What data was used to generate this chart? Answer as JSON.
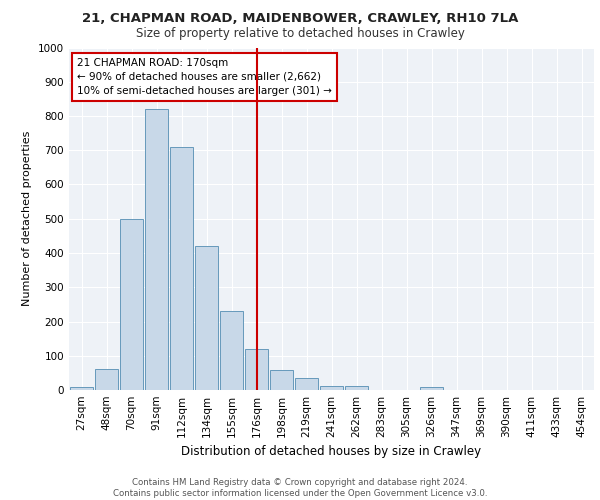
{
  "title1": "21, CHAPMAN ROAD, MAIDENBOWER, CRAWLEY, RH10 7LA",
  "title2": "Size of property relative to detached houses in Crawley",
  "xlabel": "Distribution of detached houses by size in Crawley",
  "ylabel": "Number of detached properties",
  "bin_labels": [
    "27sqm",
    "48sqm",
    "70sqm",
    "91sqm",
    "112sqm",
    "134sqm",
    "155sqm",
    "176sqm",
    "198sqm",
    "219sqm",
    "241sqm",
    "262sqm",
    "283sqm",
    "305sqm",
    "326sqm",
    "347sqm",
    "369sqm",
    "390sqm",
    "411sqm",
    "433sqm",
    "454sqm"
  ],
  "bar_values": [
    8,
    60,
    500,
    820,
    710,
    420,
    230,
    120,
    57,
    35,
    13,
    13,
    0,
    0,
    8,
    0,
    0,
    0,
    0,
    0,
    0
  ],
  "bar_color": "#c8d8e8",
  "bar_edge_color": "#6699bb",
  "vline_x": 7,
  "vline_color": "#cc0000",
  "annotation_text": "21 CHAPMAN ROAD: 170sqm\n← 90% of detached houses are smaller (2,662)\n10% of semi-detached houses are larger (301) →",
  "annotation_box_color": "#ffffff",
  "annotation_box_edge": "#cc0000",
  "ylim": [
    0,
    1000
  ],
  "yticks": [
    0,
    100,
    200,
    300,
    400,
    500,
    600,
    700,
    800,
    900,
    1000
  ],
  "footer": "Contains HM Land Registry data © Crown copyright and database right 2024.\nContains public sector information licensed under the Open Government Licence v3.0.",
  "bg_color": "#eef2f7",
  "grid_color": "#ffffff",
  "title1_fontsize": 9.5,
  "title2_fontsize": 8.5,
  "xlabel_fontsize": 8.5,
  "ylabel_fontsize": 8,
  "tick_fontsize": 7.5,
  "annotation_fontsize": 7.5,
  "footer_fontsize": 6.2
}
